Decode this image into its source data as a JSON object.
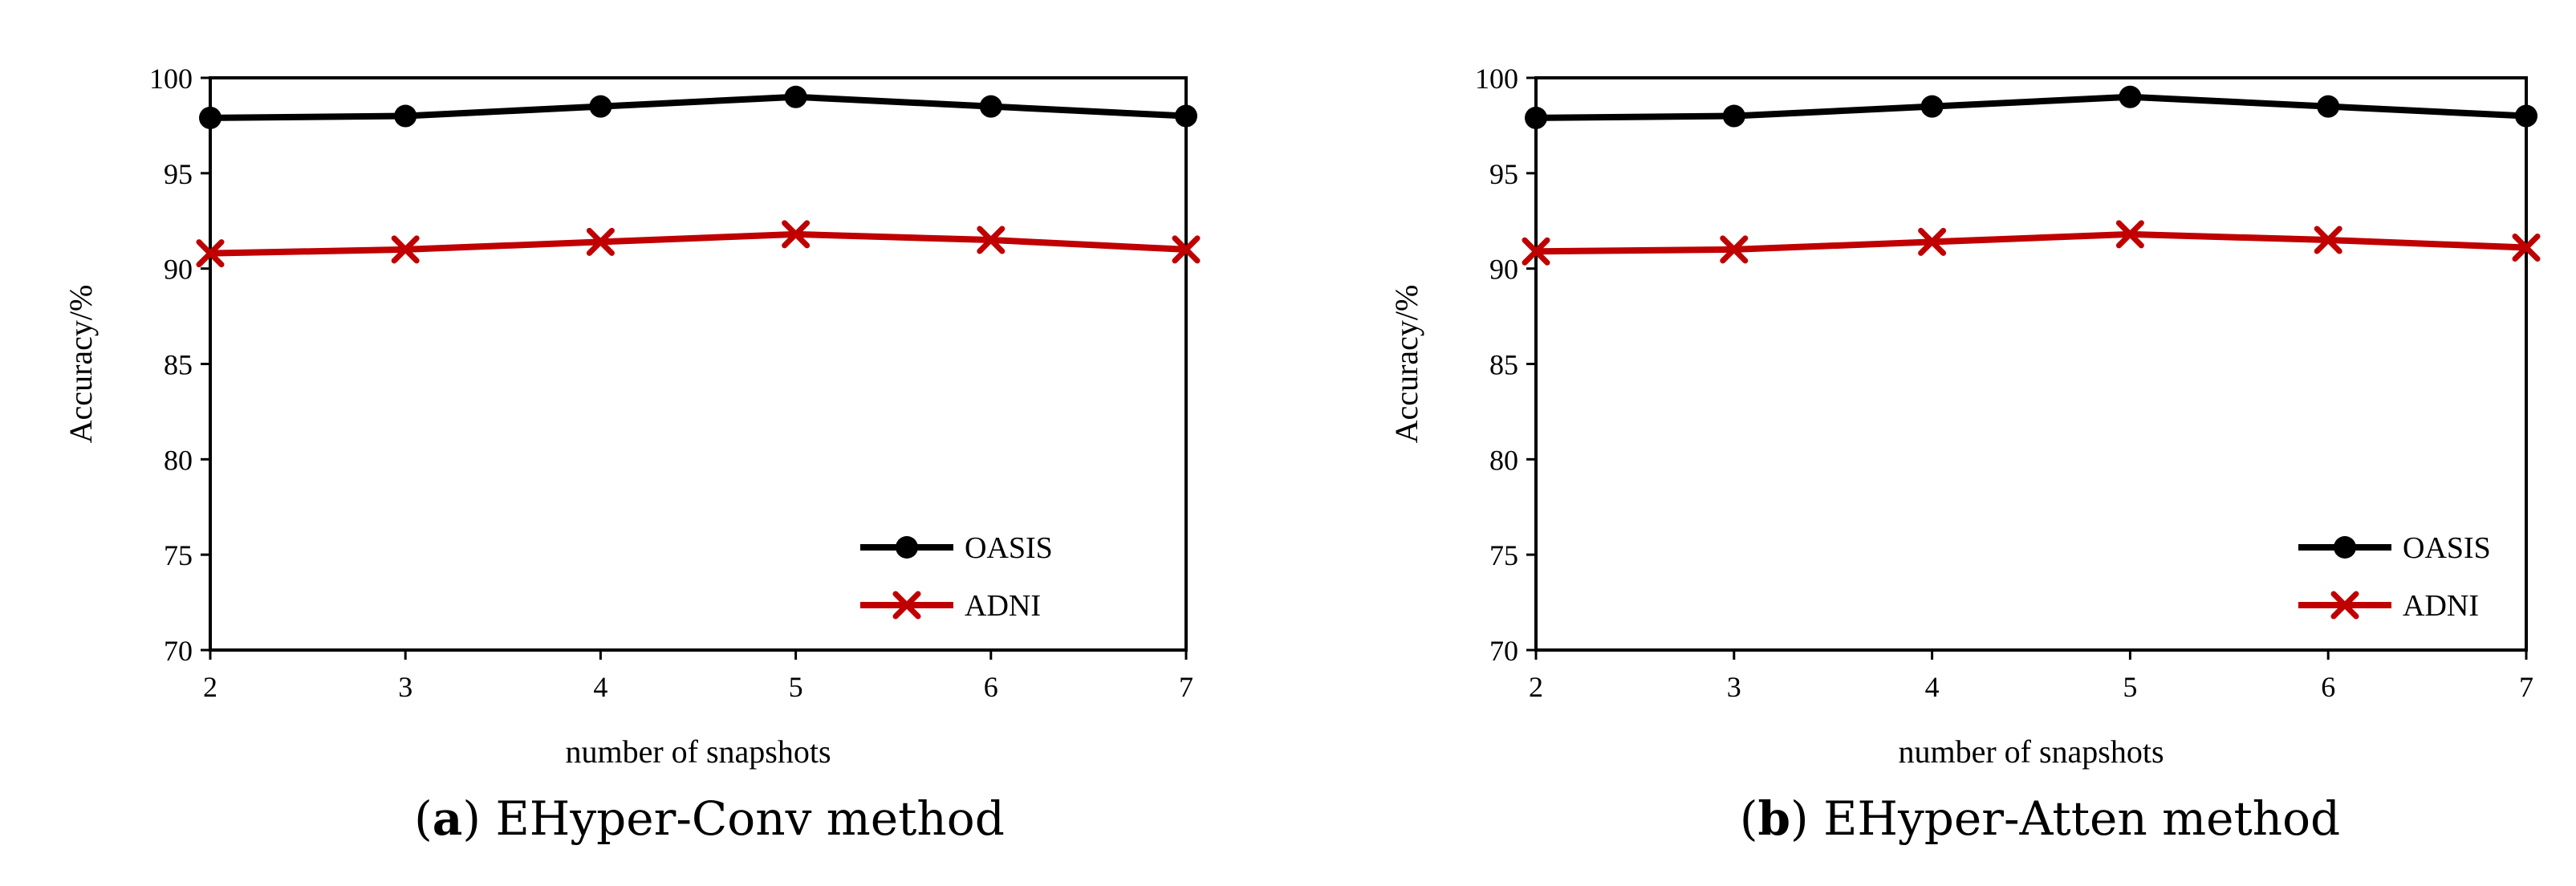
{
  "chart_data": [
    {
      "type": "line",
      "panel_label": "a",
      "caption": "EHyper-Conv method",
      "x": [
        2,
        3,
        4,
        5,
        6,
        7
      ],
      "xlabel": "number of snapshots",
      "ylabel": "Accuracy/%",
      "ylim": [
        70,
        100
      ],
      "yticks": [
        70,
        75,
        80,
        85,
        90,
        95,
        100
      ],
      "legend_position": "bottom-right",
      "series": [
        {
          "name": "OASIS",
          "values": [
            97.9,
            98.0,
            98.5,
            99.0,
            98.5,
            98.0
          ],
          "color": "#000000",
          "marker": "circle"
        },
        {
          "name": "ADNI",
          "values": [
            90.8,
            91.0,
            91.4,
            91.8,
            91.5,
            91.0
          ],
          "color": "#c00000",
          "marker": "x"
        }
      ]
    },
    {
      "type": "line",
      "panel_label": "b",
      "caption": "EHyper-Atten method",
      "x": [
        2,
        3,
        4,
        5,
        6,
        7
      ],
      "xlabel": "number of snapshots",
      "ylabel": "Accuracy/%",
      "ylim": [
        70,
        100
      ],
      "yticks": [
        70,
        75,
        80,
        85,
        90,
        95,
        100
      ],
      "legend_position": "bottom-right",
      "series": [
        {
          "name": "OASIS",
          "values": [
            97.9,
            98.0,
            98.5,
            99.0,
            98.5,
            98.0
          ],
          "color": "#000000",
          "marker": "circle"
        },
        {
          "name": "ADNI",
          "values": [
            90.9,
            91.0,
            91.4,
            91.8,
            91.5,
            91.1
          ],
          "color": "#c00000",
          "marker": "x"
        }
      ]
    }
  ]
}
